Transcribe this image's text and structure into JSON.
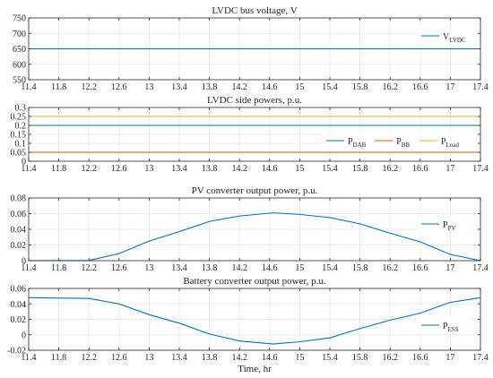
{
  "chart_data": [
    {
      "type": "line",
      "title": "LVDC bus voltage, V",
      "xlabel": "",
      "ylabel": "",
      "xlim": [
        11.4,
        17.4
      ],
      "ylim": [
        550,
        750
      ],
      "grid": true,
      "legend": "top-right",
      "yticks": [
        "550",
        "600",
        "650",
        "700",
        "750"
      ],
      "ytick_values": [
        550,
        600,
        650,
        700,
        750
      ],
      "series": [
        {
          "name": "V",
          "sub": "LVDC",
          "color": "#0072BD",
          "x": [
            11.4,
            17.4
          ],
          "y": [
            650,
            650
          ]
        }
      ]
    },
    {
      "type": "line",
      "title": "LVDC side powers, p.u.",
      "xlabel": "",
      "ylabel": "",
      "xlim": [
        11.4,
        17.4
      ],
      "ylim": [
        0,
        0.3
      ],
      "grid": true,
      "legend": "bottom-right",
      "yticks": [
        "0",
        "0.05",
        "0.1",
        "0.15",
        "0.2",
        "0.25",
        "0.3"
      ],
      "ytick_values": [
        0,
        0.05,
        0.1,
        0.15,
        0.2,
        0.25,
        0.3
      ],
      "series": [
        {
          "name": "P",
          "sub": "DAB",
          "color": "#0072BD",
          "x": [
            11.4,
            17.4
          ],
          "y": [
            0.2,
            0.2
          ]
        },
        {
          "name": "P",
          "sub": "BB",
          "color": "#D95319",
          "x": [
            11.4,
            17.4
          ],
          "y": [
            0.05,
            0.05
          ]
        },
        {
          "name": "P",
          "sub": "Load",
          "color": "#EDB120",
          "x": [
            11.4,
            17.4
          ],
          "y": [
            0.25,
            0.25
          ]
        }
      ]
    },
    {
      "type": "line",
      "title": "PV converter output power, p.u.",
      "xlabel": "",
      "ylabel": "",
      "xlim": [
        11.4,
        17.4
      ],
      "ylim": [
        0,
        0.08
      ],
      "grid": true,
      "legend": "right",
      "yticks": [
        "0",
        "0.02",
        "0.04",
        "0.06",
        "0.08"
      ],
      "ytick_values": [
        0,
        0.02,
        0.04,
        0.06,
        0.08
      ],
      "series": [
        {
          "name": "P",
          "sub": "PV",
          "color": "#0072BD",
          "x": [
            11.4,
            12.2,
            12.6,
            13.0,
            13.4,
            13.8,
            14.2,
            14.65,
            15.0,
            15.4,
            15.8,
            16.2,
            16.6,
            17.0,
            17.4
          ],
          "y": [
            0,
            0.0002,
            0.009,
            0.025,
            0.037,
            0.05,
            0.057,
            0.061,
            0.059,
            0.055,
            0.047,
            0.035,
            0.024,
            0.008,
            0.0
          ]
        }
      ]
    },
    {
      "type": "line",
      "title": "Battery converter output power, p.u.",
      "xlabel": "Time, hr",
      "ylabel": "",
      "xlim": [
        11.4,
        17.4
      ],
      "ylim": [
        -0.02,
        0.06
      ],
      "grid": true,
      "legend": "right",
      "yticks": [
        "-0.02",
        "0",
        "0.02",
        "0.04",
        "0.06"
      ],
      "ytick_values": [
        -0.02,
        0,
        0.02,
        0.04,
        0.06
      ],
      "series": [
        {
          "name": "P",
          "sub": "ESS",
          "color": "#0072BD",
          "x": [
            11.4,
            12.2,
            12.6,
            13.0,
            13.4,
            13.8,
            14.2,
            14.65,
            15.0,
            15.4,
            15.8,
            16.2,
            16.6,
            17.0,
            17.4
          ],
          "y": [
            0.048,
            0.047,
            0.04,
            0.026,
            0.015,
            0.001,
            -0.008,
            -0.012,
            -0.009,
            -0.004,
            0.008,
            0.019,
            0.028,
            0.042,
            0.048
          ]
        }
      ]
    }
  ],
  "xticks": [
    "11.4",
    "11.8",
    "12.2",
    "12.6",
    "13",
    "13.4",
    "13.8",
    "14.2",
    "14.6",
    "15",
    "15.4",
    "15.8",
    "16.2",
    "16.6",
    "17",
    "17.4"
  ],
  "xtick_values": [
    11.4,
    11.8,
    12.2,
    12.6,
    13.0,
    13.4,
    13.8,
    14.2,
    14.6,
    15.0,
    15.4,
    15.8,
    16.2,
    16.6,
    17.0,
    17.4
  ],
  "colors": {
    "axis": "#262626",
    "grid": "#e6e6e6"
  }
}
